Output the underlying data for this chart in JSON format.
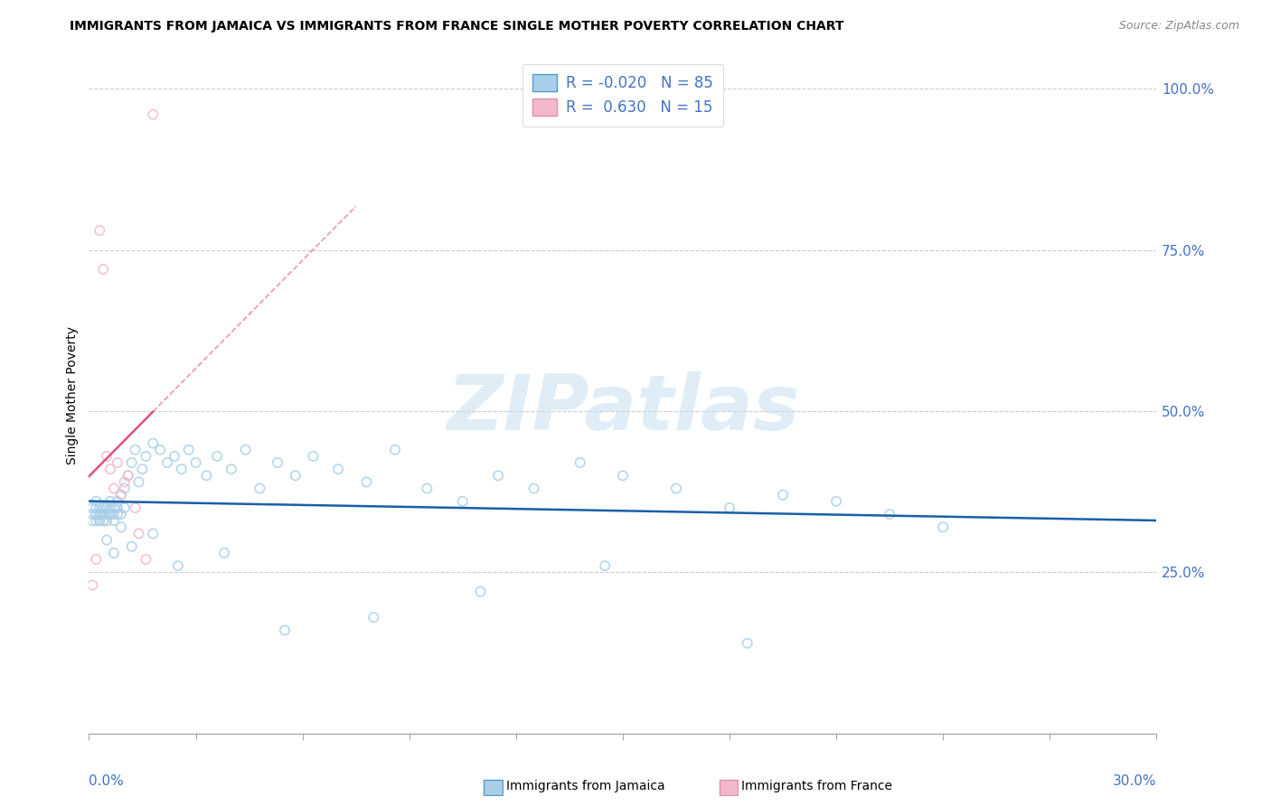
{
  "title": "IMMIGRANTS FROM JAMAICA VS IMMIGRANTS FROM FRANCE SINGLE MOTHER POVERTY CORRELATION CHART",
  "source": "Source: ZipAtlas.com",
  "ylabel": "Single Mother Poverty",
  "right_yticks": [
    0.25,
    0.5,
    0.75,
    1.0
  ],
  "right_yticklabels": [
    "25.0%",
    "50.0%",
    "75.0%",
    "100.0%"
  ],
  "xlim": [
    0.0,
    0.3
  ],
  "ylim": [
    0.0,
    1.05
  ],
  "R_jamaica": -0.02,
  "N_jamaica": 85,
  "R_france": 0.63,
  "N_france": 15,
  "color_jamaica": "#a8cfe8",
  "color_france": "#f4b8cb",
  "color_trendline_jamaica": "#1a5fa8",
  "color_trendline_france": "#e05080",
  "watermark": "ZIPatlas",
  "watermark_color": "#c8dff0",
  "jamaica_x": [
    0.001,
    0.001,
    0.001,
    0.002,
    0.002,
    0.002,
    0.002,
    0.002,
    0.003,
    0.003,
    0.003,
    0.003,
    0.003,
    0.003,
    0.004,
    0.004,
    0.004,
    0.004,
    0.004,
    0.005,
    0.005,
    0.005,
    0.005,
    0.006,
    0.006,
    0.006,
    0.006,
    0.007,
    0.007,
    0.007,
    0.008,
    0.008,
    0.008,
    0.009,
    0.009,
    0.01,
    0.01,
    0.011,
    0.012,
    0.013,
    0.014,
    0.015,
    0.016,
    0.018,
    0.02,
    0.022,
    0.024,
    0.026,
    0.028,
    0.03,
    0.033,
    0.036,
    0.04,
    0.044,
    0.048,
    0.053,
    0.058,
    0.063,
    0.07,
    0.078,
    0.086,
    0.095,
    0.105,
    0.115,
    0.125,
    0.138,
    0.15,
    0.165,
    0.18,
    0.195,
    0.21,
    0.225,
    0.24,
    0.005,
    0.007,
    0.009,
    0.012,
    0.018,
    0.025,
    0.038,
    0.055,
    0.08,
    0.11,
    0.145,
    0.185
  ],
  "jamaica_y": [
    0.34,
    0.33,
    0.35,
    0.34,
    0.33,
    0.35,
    0.34,
    0.36,
    0.34,
    0.33,
    0.35,
    0.34,
    0.33,
    0.34,
    0.35,
    0.34,
    0.33,
    0.35,
    0.34,
    0.35,
    0.34,
    0.33,
    0.35,
    0.35,
    0.34,
    0.36,
    0.34,
    0.35,
    0.34,
    0.33,
    0.36,
    0.34,
    0.35,
    0.37,
    0.34,
    0.38,
    0.35,
    0.4,
    0.42,
    0.44,
    0.39,
    0.41,
    0.43,
    0.45,
    0.44,
    0.42,
    0.43,
    0.41,
    0.44,
    0.42,
    0.4,
    0.43,
    0.41,
    0.44,
    0.38,
    0.42,
    0.4,
    0.43,
    0.41,
    0.39,
    0.44,
    0.38,
    0.36,
    0.4,
    0.38,
    0.42,
    0.4,
    0.38,
    0.35,
    0.37,
    0.36,
    0.34,
    0.32,
    0.3,
    0.28,
    0.32,
    0.29,
    0.31,
    0.26,
    0.28,
    0.16,
    0.18,
    0.22,
    0.26,
    0.14
  ],
  "france_x": [
    0.001,
    0.002,
    0.003,
    0.004,
    0.005,
    0.006,
    0.007,
    0.008,
    0.009,
    0.01,
    0.011,
    0.013,
    0.014,
    0.016,
    0.018
  ],
  "france_y": [
    0.23,
    0.27,
    0.78,
    0.72,
    0.43,
    0.41,
    0.38,
    0.42,
    0.37,
    0.39,
    0.4,
    0.35,
    0.31,
    0.27,
    0.96
  ]
}
